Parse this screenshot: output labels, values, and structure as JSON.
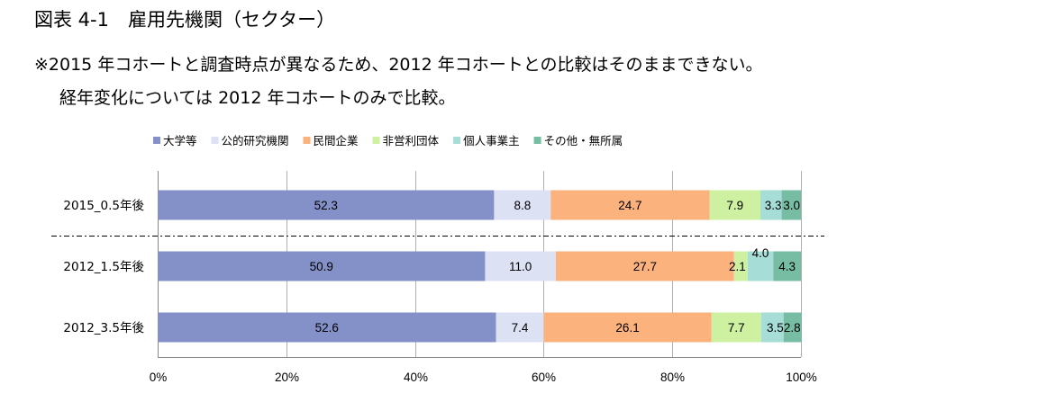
{
  "header": {
    "title": "図表 4-1　雇用先機関（セクター）",
    "note_line1": "※2015 年コホートと調査時点が異なるため、2012 年コホートとの比較はそのままできない。",
    "note_line2": "経年変化については 2012 年コホートのみで比較。"
  },
  "chart_data": {
    "type": "bar",
    "orientation": "horizontal",
    "stacked": true,
    "percent": true,
    "categories": [
      "2015_0.5年後",
      "2012_1.5年後",
      "2012_3.5年後"
    ],
    "series": [
      {
        "name": "大学等",
        "color": "#8491c8",
        "values": [
          52.3,
          50.9,
          52.6
        ]
      },
      {
        "name": "公的研究機関",
        "color": "#dde1f4",
        "values": [
          8.8,
          11.0,
          7.4
        ]
      },
      {
        "name": "民間企業",
        "color": "#fbb27d",
        "values": [
          24.7,
          27.7,
          26.1
        ]
      },
      {
        "name": "非営利団体",
        "color": "#cdf1a1",
        "values": [
          7.9,
          2.1,
          7.7
        ]
      },
      {
        "name": "個人事業主",
        "color": "#a6ddd7",
        "values": [
          3.3,
          4.0,
          3.5
        ]
      },
      {
        "name": "その他・無所属",
        "color": "#76bda3",
        "values": [
          3.0,
          4.3,
          2.8
        ]
      }
    ],
    "value_labels": [
      [
        "52.3",
        "8.8",
        "24.7",
        "7.9",
        "3.3",
        "3.0"
      ],
      [
        "50.9",
        "11.0",
        "27.7",
        "2.1",
        "4.0",
        "4.3"
      ],
      [
        "52.6",
        "7.4",
        "26.1",
        "7.7",
        "3.5",
        "2.8"
      ]
    ],
    "xlim": [
      0,
      100
    ],
    "xticks": [
      "0%",
      "20%",
      "40%",
      "60%",
      "80%",
      "100%"
    ],
    "grid": true,
    "legend_position": "top",
    "separator_after_category": 0
  }
}
